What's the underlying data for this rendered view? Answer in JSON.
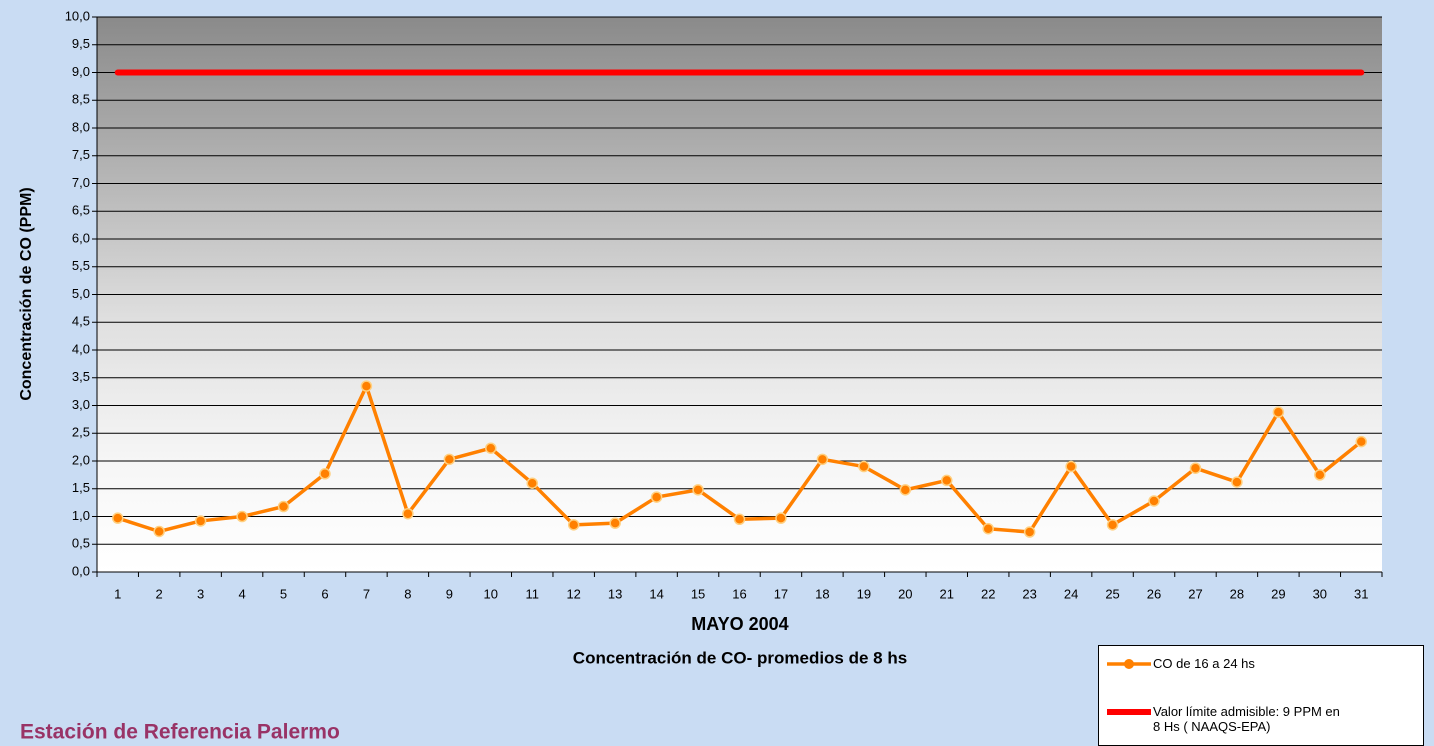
{
  "chart_data": {
    "type": "line",
    "x_label": "MAYO 2004",
    "subtitle": "Concentración de CO- promedios de 8 hs",
    "y_label": "Concentración de CO (PPM)",
    "footer": "Estación de Referencia Palermo",
    "categories": [
      "1",
      "2",
      "3",
      "4",
      "5",
      "6",
      "7",
      "8",
      "9",
      "10",
      "11",
      "12",
      "13",
      "14",
      "15",
      "16",
      "17",
      "18",
      "19",
      "20",
      "21",
      "22",
      "23",
      "24",
      "25",
      "26",
      "27",
      "28",
      "29",
      "30",
      "31"
    ],
    "series": [
      {
        "name": "CO de 16 a 24 hs",
        "color": "#ff8000",
        "values": [
          0.97,
          0.73,
          0.92,
          1.0,
          1.18,
          1.77,
          3.35,
          1.05,
          2.03,
          2.23,
          1.6,
          0.85,
          0.88,
          1.35,
          1.48,
          0.95,
          0.97,
          2.03,
          1.9,
          1.48,
          1.65,
          0.78,
          0.72,
          1.9,
          0.85,
          1.28,
          1.87,
          1.62,
          2.88,
          1.75,
          2.35
        ]
      },
      {
        "name": "Valor límite admisible: 9 PPM en 8 Hs ( NAAQS-EPA)",
        "color": "#ff0000",
        "values": [
          9,
          9,
          9,
          9,
          9,
          9,
          9,
          9,
          9,
          9,
          9,
          9,
          9,
          9,
          9,
          9,
          9,
          9,
          9,
          9,
          9,
          9,
          9,
          9,
          9,
          9,
          9,
          9,
          9,
          9,
          9
        ]
      }
    ],
    "ylim": [
      0,
      10
    ],
    "yticks": [
      {
        "value": 0,
        "label": "0,0"
      },
      {
        "value": 0.5,
        "label": "0,5"
      },
      {
        "value": 1,
        "label": "1,0"
      },
      {
        "value": 1.5,
        "label": "1,5"
      },
      {
        "value": 2,
        "label": "2,0"
      },
      {
        "value": 2.5,
        "label": "2,5"
      },
      {
        "value": 3,
        "label": "3,0"
      },
      {
        "value": 3.5,
        "label": "3,5"
      },
      {
        "value": 4,
        "label": "4,0"
      },
      {
        "value": 4.5,
        "label": "4,5"
      },
      {
        "value": 5,
        "label": "5,0"
      },
      {
        "value": 5.5,
        "label": "5,5"
      },
      {
        "value": 6,
        "label": "6,0"
      },
      {
        "value": 6.5,
        "label": "6,5"
      },
      {
        "value": 7,
        "label": "7,0"
      },
      {
        "value": 7.5,
        "label": "7,5"
      },
      {
        "value": 8,
        "label": "8,0"
      },
      {
        "value": 8.5,
        "label": "8,5"
      },
      {
        "value": 9,
        "label": "9,0"
      },
      {
        "value": 9.5,
        "label": "9,5"
      },
      {
        "value": 10,
        "label": "10,0"
      }
    ],
    "grid": true
  }
}
